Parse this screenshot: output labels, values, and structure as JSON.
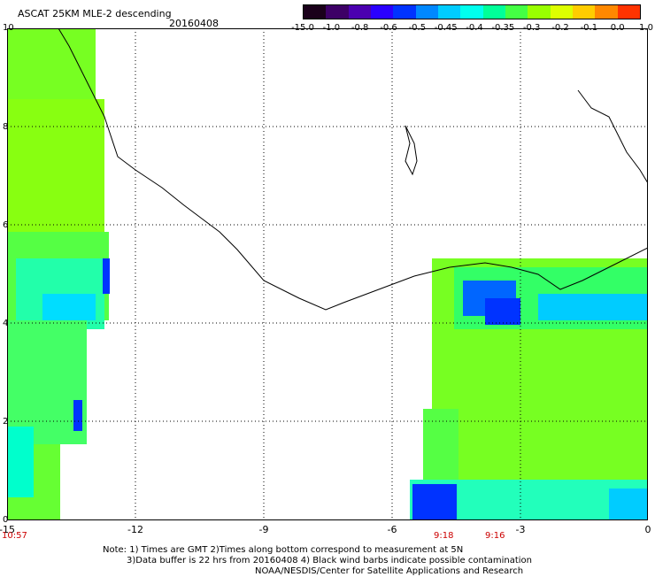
{
  "header": {
    "title": "ASCAT 25KM MLE-2 descending",
    "date": "20160408"
  },
  "colorbar": {
    "labels": [
      "-15.0",
      "-1.0",
      "-0.8",
      "-0.6",
      "-0.5",
      "-0.45",
      "-0.4",
      "-0.35",
      "-0.3",
      "-0.2",
      "-0.1",
      "0.0",
      "1.0"
    ],
    "colors": [
      "#1a001a",
      "#3d0066",
      "#4b00b0",
      "#2a00ff",
      "#0033ff",
      "#0088ff",
      "#00ccff",
      "#00ffee",
      "#00ff99",
      "#44ff44",
      "#99ff00",
      "#ddff00",
      "#ffcc00",
      "#ff8800",
      "#ff3300"
    ]
  },
  "axes": {
    "x_ticks": [
      "-15",
      "-12",
      "-9",
      "-6",
      "-3",
      "0"
    ],
    "y_ticks": [
      "10",
      "8",
      "6",
      "4",
      "2",
      "0"
    ]
  },
  "pass_times": {
    "left": "10:57",
    "middle1": "9:18",
    "middle2": "9:16"
  },
  "notes": [
    "Note: 1) Times are GMT 2)Times along bottom correspond to measurement at 5N",
    "3)Data buffer is 22 hrs from 20160408 4) Black wind barbs indicate possible contamination",
    "NOAA/NESDIS/Center for Satellite Applications and Research"
  ],
  "colors": {
    "data_green": "#66ff33",
    "data_lime": "#99ff00",
    "data_cyan": "#00ffee",
    "data_blue": "#0033ff",
    "accent_time": "#cc0000"
  }
}
